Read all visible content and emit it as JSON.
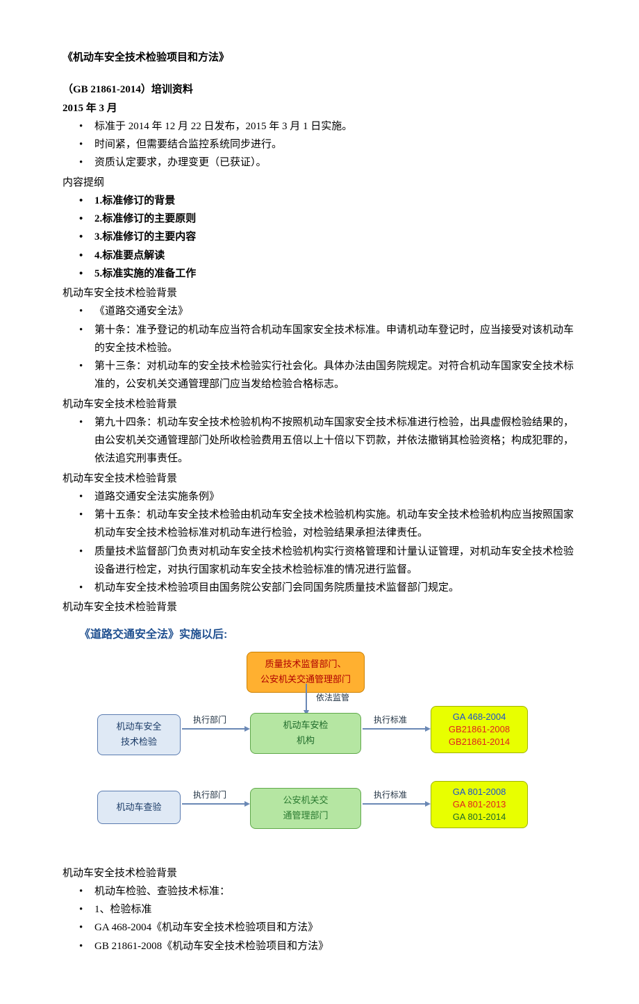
{
  "title": "《机动车安全技术检验项目和方法》",
  "subtitle1": "（GB 21861-2014）培训资料",
  "subtitle2": "2015 年 3 月",
  "intro_bullets": [
    "标准于 2014 年 12 月 22 日发布，2015 年 3 月 1 日实施。",
    "时间紧，但需要结合监控系统同步进行。",
    "资质认定要求，办理变更（已获证）。"
  ],
  "outline_head": "内容提纲",
  "outline": [
    "1.标准修订的背景",
    "2.标准修订的主要原则",
    "3.标准修订的主要内容",
    "4.标准要点解读",
    "5.标准实施的准备工作"
  ],
  "sections": [
    {
      "head": "机动车安全技术检验背景",
      "items": [
        "《道路交通安全法》",
        "第十条：准予登记的机动车应当符合机动车国家安全技术标准。申请机动车登记时，应当接受对该机动车的安全技术检验。",
        "第十三条：对机动车的安全技术检验实行社会化。具体办法由国务院规定。对符合机动车国家安全技术标准的，公安机关交通管理部门应当发给检验合格标志。"
      ]
    },
    {
      "head": "机动车安全技术检验背景",
      "items": [
        "第九十四条：机动车安全技术检验机构不按照机动车国家安全技术标准进行检验，出具虚假检验结果的，由公安机关交通管理部门处所收检验费用五倍以上十倍以下罚款，并依法撤销其检验资格；构成犯罪的，依法追究刑事责任。"
      ]
    },
    {
      "head": "机动车安全技术检验背景",
      "items": [
        "道路交通安全法实施条例》",
        "第十五条：机动车安全技术检验由机动车安全技术检验机构实施。机动车安全技术检验机构应当按照国家机动车安全技术检验标准对机动车进行检验，对检验结果承担法律责任。",
        "质量技术监督部门负责对机动车安全技术检验机构实行资格管理和计量认证管理，对机动车安全技术检验设备进行检定，对执行国家机动车安全技术检验标准的情况进行监督。",
        "机动车安全技术检验项目由国务院公安部门会同国务院质量技术监督部门规定。"
      ]
    }
  ],
  "flow_section_head": "机动车安全技术检验背景",
  "flow": {
    "title": "《道路交通安全法》实施以后:",
    "top_box": "质量技术监督部门、\n公安机关交通管理部门",
    "lbl_supervise": "依法监管",
    "lbl_exec_dept": "执行部门",
    "lbl_exec_std": "执行标准",
    "row1_left": "机动车安全\n技术检验",
    "row1_mid": "机动车安检\n机构",
    "row1_right": [
      "GA 468-2004",
      "GB21861-2008",
      "GB21861-2014"
    ],
    "row1_right_colors": [
      "blue",
      "red",
      "red"
    ],
    "row2_left": "机动车查验",
    "row2_mid": "公安机关交\n通管理部门",
    "row2_right": [
      "GA 801-2008",
      "GA 801-2013",
      "GA 801-2014"
    ],
    "row2_right_colors": [
      "blue",
      "red",
      "green"
    ]
  },
  "after_flow_head": "机动车安全技术检验背景",
  "after_flow": [
    "机动车检验、查验技术标准：",
    "1、检验标准",
    "GA 468-2004《机动车安全技术检验项目和方法》",
    "GB 21861-2008《机动车安全技术检验项目和方法》"
  ]
}
